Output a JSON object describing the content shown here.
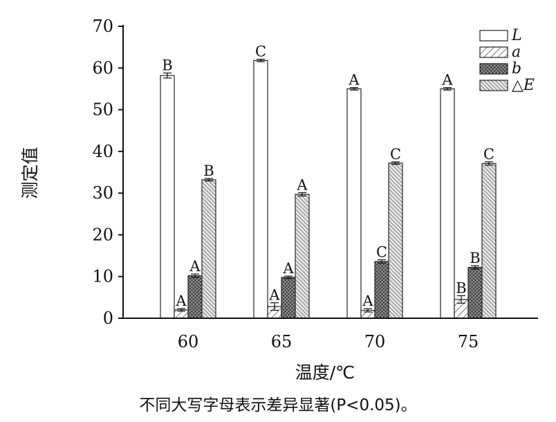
{
  "chart_data": {
    "type": "bar",
    "categories": [
      "60",
      "65",
      "70",
      "75"
    ],
    "series": [
      {
        "name": "L",
        "values": [
          58.2,
          61.8,
          55.0,
          55.0
        ],
        "errors": [
          0.6,
          0.3,
          0.3,
          0.3
        ],
        "labels": [
          "B",
          "C",
          "A",
          "A"
        ],
        "pattern": "plain"
      },
      {
        "name": "a",
        "values": [
          2.0,
          2.8,
          1.9,
          4.5
        ],
        "errors": [
          0.3,
          0.9,
          0.4,
          0.9
        ],
        "labels": [
          "A",
          "A",
          "A",
          "B"
        ],
        "pattern": "hatch-light"
      },
      {
        "name": "b",
        "values": [
          10.2,
          9.8,
          13.6,
          12.2
        ],
        "errors": [
          0.4,
          0.3,
          0.4,
          0.4
        ],
        "labels": [
          "A",
          "A",
          "C",
          "B"
        ],
        "pattern": "crosshatch"
      },
      {
        "name": "△E",
        "values": [
          33.2,
          29.7,
          37.2,
          37.1
        ],
        "errors": [
          0.3,
          0.4,
          0.3,
          0.4
        ],
        "labels": [
          "B",
          "A",
          "C",
          "C"
        ],
        "pattern": "hatch-dense"
      }
    ],
    "xlabel": "温度/℃",
    "ylabel": "测定值",
    "ylim": [
      0,
      70
    ],
    "yticks": [
      "0",
      "10",
      "20",
      "30",
      "40",
      "50",
      "60",
      "70"
    ],
    "legend": "top-right",
    "grid": false
  },
  "caption": "不同大写字母表示差异显著(P<0.05)。"
}
